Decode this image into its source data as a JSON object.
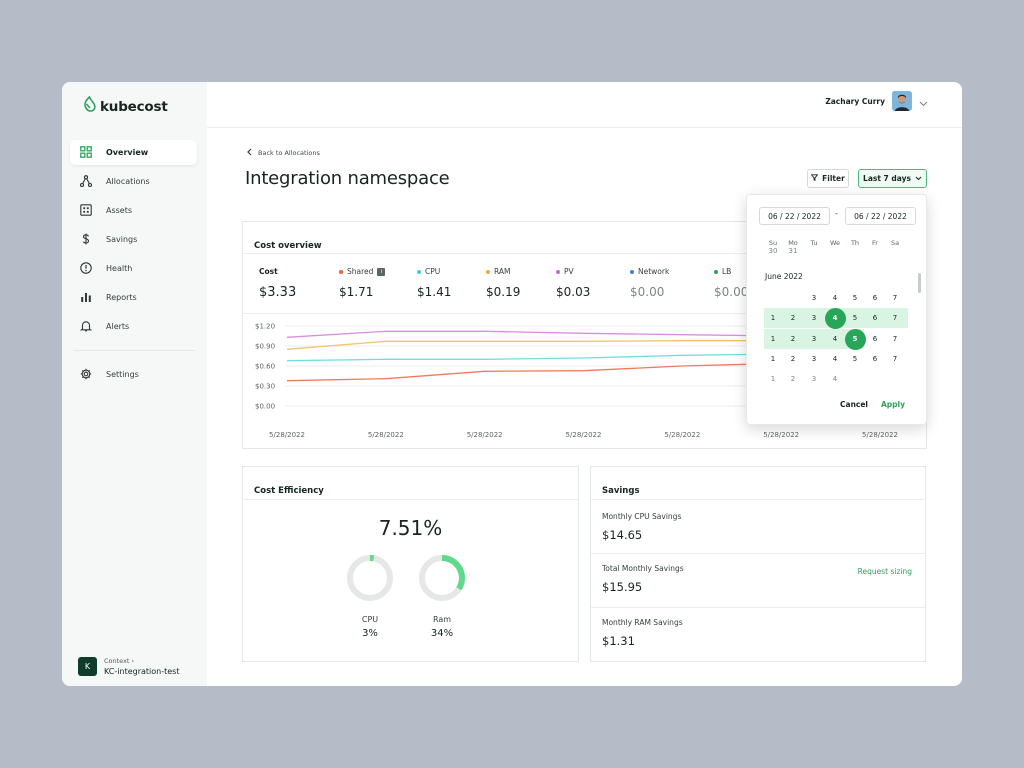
{
  "app": {
    "name": "kubecost"
  },
  "sidebar": {
    "items": [
      {
        "label": "Overview",
        "icon": "grid-icon",
        "active": true
      },
      {
        "label": "Allocations",
        "icon": "allocations-icon",
        "active": false
      },
      {
        "label": "Assets",
        "icon": "assets-icon",
        "active": false
      },
      {
        "label": "Savings",
        "icon": "dollar-icon",
        "active": false
      },
      {
        "label": "Health",
        "icon": "health-icon",
        "active": false
      },
      {
        "label": "Reports",
        "icon": "bar-chart-icon",
        "active": false
      },
      {
        "label": "Alerts",
        "icon": "bell-icon",
        "active": false
      }
    ],
    "settings_label": "Settings",
    "context": {
      "badge": "K",
      "label": "Context",
      "value": "KC-integration-test"
    }
  },
  "header": {
    "user_name": "Zachary Curry"
  },
  "page": {
    "back_label": "Back to Allocations",
    "title": "Integration namespace",
    "filter_label": "Filter",
    "range_label": "Last 7 days"
  },
  "cost_overview": {
    "title": "Cost overview",
    "metrics": [
      {
        "label": "Cost",
        "value": "$3.33",
        "color": ""
      },
      {
        "label": "Shared",
        "value": "$1.71",
        "color": "#f25f3a",
        "info": "i"
      },
      {
        "label": "CPU",
        "value": "$1.41",
        "color": "#3ccfd6"
      },
      {
        "label": "RAM",
        "value": "$0.19",
        "color": "#f2a93b"
      },
      {
        "label": "PV",
        "value": "$0.03",
        "color": "#c46ad6"
      },
      {
        "label": "Network",
        "value": "$0.00",
        "color": "#3a86c9"
      },
      {
        "label": "LB",
        "value": "$0.00",
        "color": "#2ea05d"
      }
    ]
  },
  "chart_data": {
    "type": "line",
    "x": [
      "5/28/2022",
      "5/28/2022",
      "5/28/2022",
      "5/28/2022",
      "5/28/2022",
      "5/28/2022",
      "5/28/2022"
    ],
    "y_ticks": [
      "$1.20",
      "$0.90",
      "$0.60",
      "$0.30",
      "$0.00"
    ],
    "ylim": [
      0,
      1.2
    ],
    "series": [
      {
        "color": "#d88de0",
        "values": [
          1.03,
          1.12,
          1.12,
          1.09,
          1.07,
          1.05,
          1.04
        ]
      },
      {
        "color": "#f2c36b",
        "values": [
          0.85,
          0.97,
          0.97,
          0.97,
          0.98,
          0.98,
          0.98
        ]
      },
      {
        "color": "#6fdde2",
        "values": [
          0.68,
          0.7,
          0.7,
          0.72,
          0.76,
          0.78,
          0.79
        ]
      },
      {
        "color": "#f07a5c",
        "values": [
          0.38,
          0.41,
          0.52,
          0.53,
          0.6,
          0.64,
          0.66
        ]
      }
    ]
  },
  "efficiency": {
    "title": "Cost Efficiency",
    "overall": "7.51%",
    "items": [
      {
        "label": "CPU",
        "value": "3%",
        "fraction": 0.03
      },
      {
        "label": "Ram",
        "value": "34%",
        "fraction": 0.34
      }
    ]
  },
  "savings": {
    "title": "Savings",
    "rows": [
      {
        "label": "Monthly CPU Savings",
        "value": "$14.65"
      },
      {
        "label": "Total Monthly Savings",
        "value": "$15.95",
        "link": "Request sizing"
      },
      {
        "label": "Monthly RAM Savings",
        "value": "$1.31"
      }
    ]
  },
  "datepicker": {
    "start": "06 / 22 / 2022",
    "end": "06 / 22 / 2022",
    "weekdays": [
      "Su",
      "Mo",
      "Tu",
      "We",
      "Th",
      "Fr",
      "Sa"
    ],
    "prev_row": [
      "30",
      "31"
    ],
    "month": "June 2022",
    "cancel_label": "Cancel",
    "apply_label": "Apply",
    "weeks": [
      [
        "",
        "",
        "3",
        "4",
        "5",
        "6",
        "7"
      ],
      [
        "1",
        "2",
        "3",
        "4",
        "5",
        "6",
        "7"
      ],
      [
        "1",
        "2",
        "3",
        "4",
        "5",
        "6",
        "7"
      ],
      [
        "1",
        "2",
        "3",
        "4",
        "5",
        "6",
        "7"
      ],
      [
        "1",
        "2",
        "3",
        "4",
        "",
        "",
        ""
      ]
    ]
  }
}
